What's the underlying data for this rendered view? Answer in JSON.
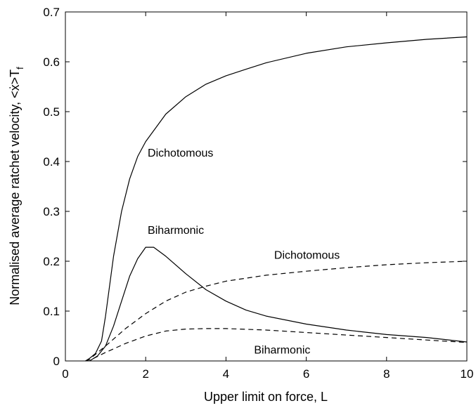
{
  "chart_data": {
    "type": "line",
    "title": "",
    "xlabel": "Upper limit on force, L",
    "ylabel": "Normalised average ratchet velocity, <ẋ>T",
    "ylabel_subscript": "f",
    "xlim": [
      0,
      10
    ],
    "ylim": [
      0,
      0.7
    ],
    "xticks": [
      0,
      2,
      4,
      6,
      8,
      10
    ],
    "yticks": [
      0,
      0.1,
      0.2,
      0.3,
      0.4,
      0.5,
      0.6,
      0.7
    ],
    "grid": false,
    "legend": "none",
    "series": [
      {
        "name": "Dichotomous",
        "style": "solid",
        "x": [
          0.6,
          0.75,
          0.9,
          1.0,
          1.2,
          1.4,
          1.6,
          1.8,
          2.0,
          2.5,
          3.0,
          3.5,
          4.0,
          4.5,
          5.0,
          6.0,
          7.0,
          8.0,
          9.0,
          10.0
        ],
        "y": [
          0.005,
          0.015,
          0.04,
          0.09,
          0.21,
          0.3,
          0.365,
          0.41,
          0.44,
          0.495,
          0.53,
          0.555,
          0.572,
          0.585,
          0.598,
          0.617,
          0.63,
          0.638,
          0.645,
          0.65
        ]
      },
      {
        "name": "Biharmonic",
        "style": "solid",
        "x": [
          0.6,
          0.8,
          1.0,
          1.2,
          1.4,
          1.6,
          1.8,
          2.0,
          2.2,
          2.5,
          3.0,
          3.5,
          4.0,
          4.5,
          5.0,
          6.0,
          7.0,
          8.0,
          9.0,
          10.0
        ],
        "y": [
          0.0,
          0.01,
          0.03,
          0.07,
          0.12,
          0.17,
          0.205,
          0.228,
          0.228,
          0.21,
          0.175,
          0.143,
          0.12,
          0.102,
          0.09,
          0.074,
          0.062,
          0.053,
          0.047,
          0.038
        ]
      },
      {
        "name": "Dichotomous",
        "style": "dashed",
        "x": [
          0.5,
          0.7,
          1.0,
          1.5,
          2.0,
          2.5,
          3.0,
          3.5,
          4.0,
          5.0,
          6.0,
          7.0,
          8.0,
          9.0,
          10.0
        ],
        "y": [
          0.0,
          0.01,
          0.03,
          0.065,
          0.095,
          0.12,
          0.138,
          0.15,
          0.16,
          0.172,
          0.18,
          0.187,
          0.193,
          0.197,
          0.2
        ]
      },
      {
        "name": "Biharmonic",
        "style": "dashed",
        "x": [
          0.5,
          0.7,
          1.0,
          1.5,
          2.0,
          2.5,
          3.0,
          3.5,
          4.0,
          5.0,
          6.0,
          7.0,
          8.0,
          9.0,
          10.0
        ],
        "y": [
          0.0,
          0.005,
          0.017,
          0.035,
          0.05,
          0.06,
          0.064,
          0.065,
          0.065,
          0.062,
          0.057,
          0.052,
          0.047,
          0.042,
          0.037
        ]
      }
    ],
    "annotations": [
      {
        "text": "Dichotomous",
        "x": 2.05,
        "y": 0.41
      },
      {
        "text": "Biharmonic",
        "x": 2.05,
        "y": 0.255
      },
      {
        "text": "Dichotomous",
        "x": 5.2,
        "y": 0.205
      },
      {
        "text": "Biharmonic",
        "x": 4.7,
        "y": 0.015
      }
    ]
  }
}
